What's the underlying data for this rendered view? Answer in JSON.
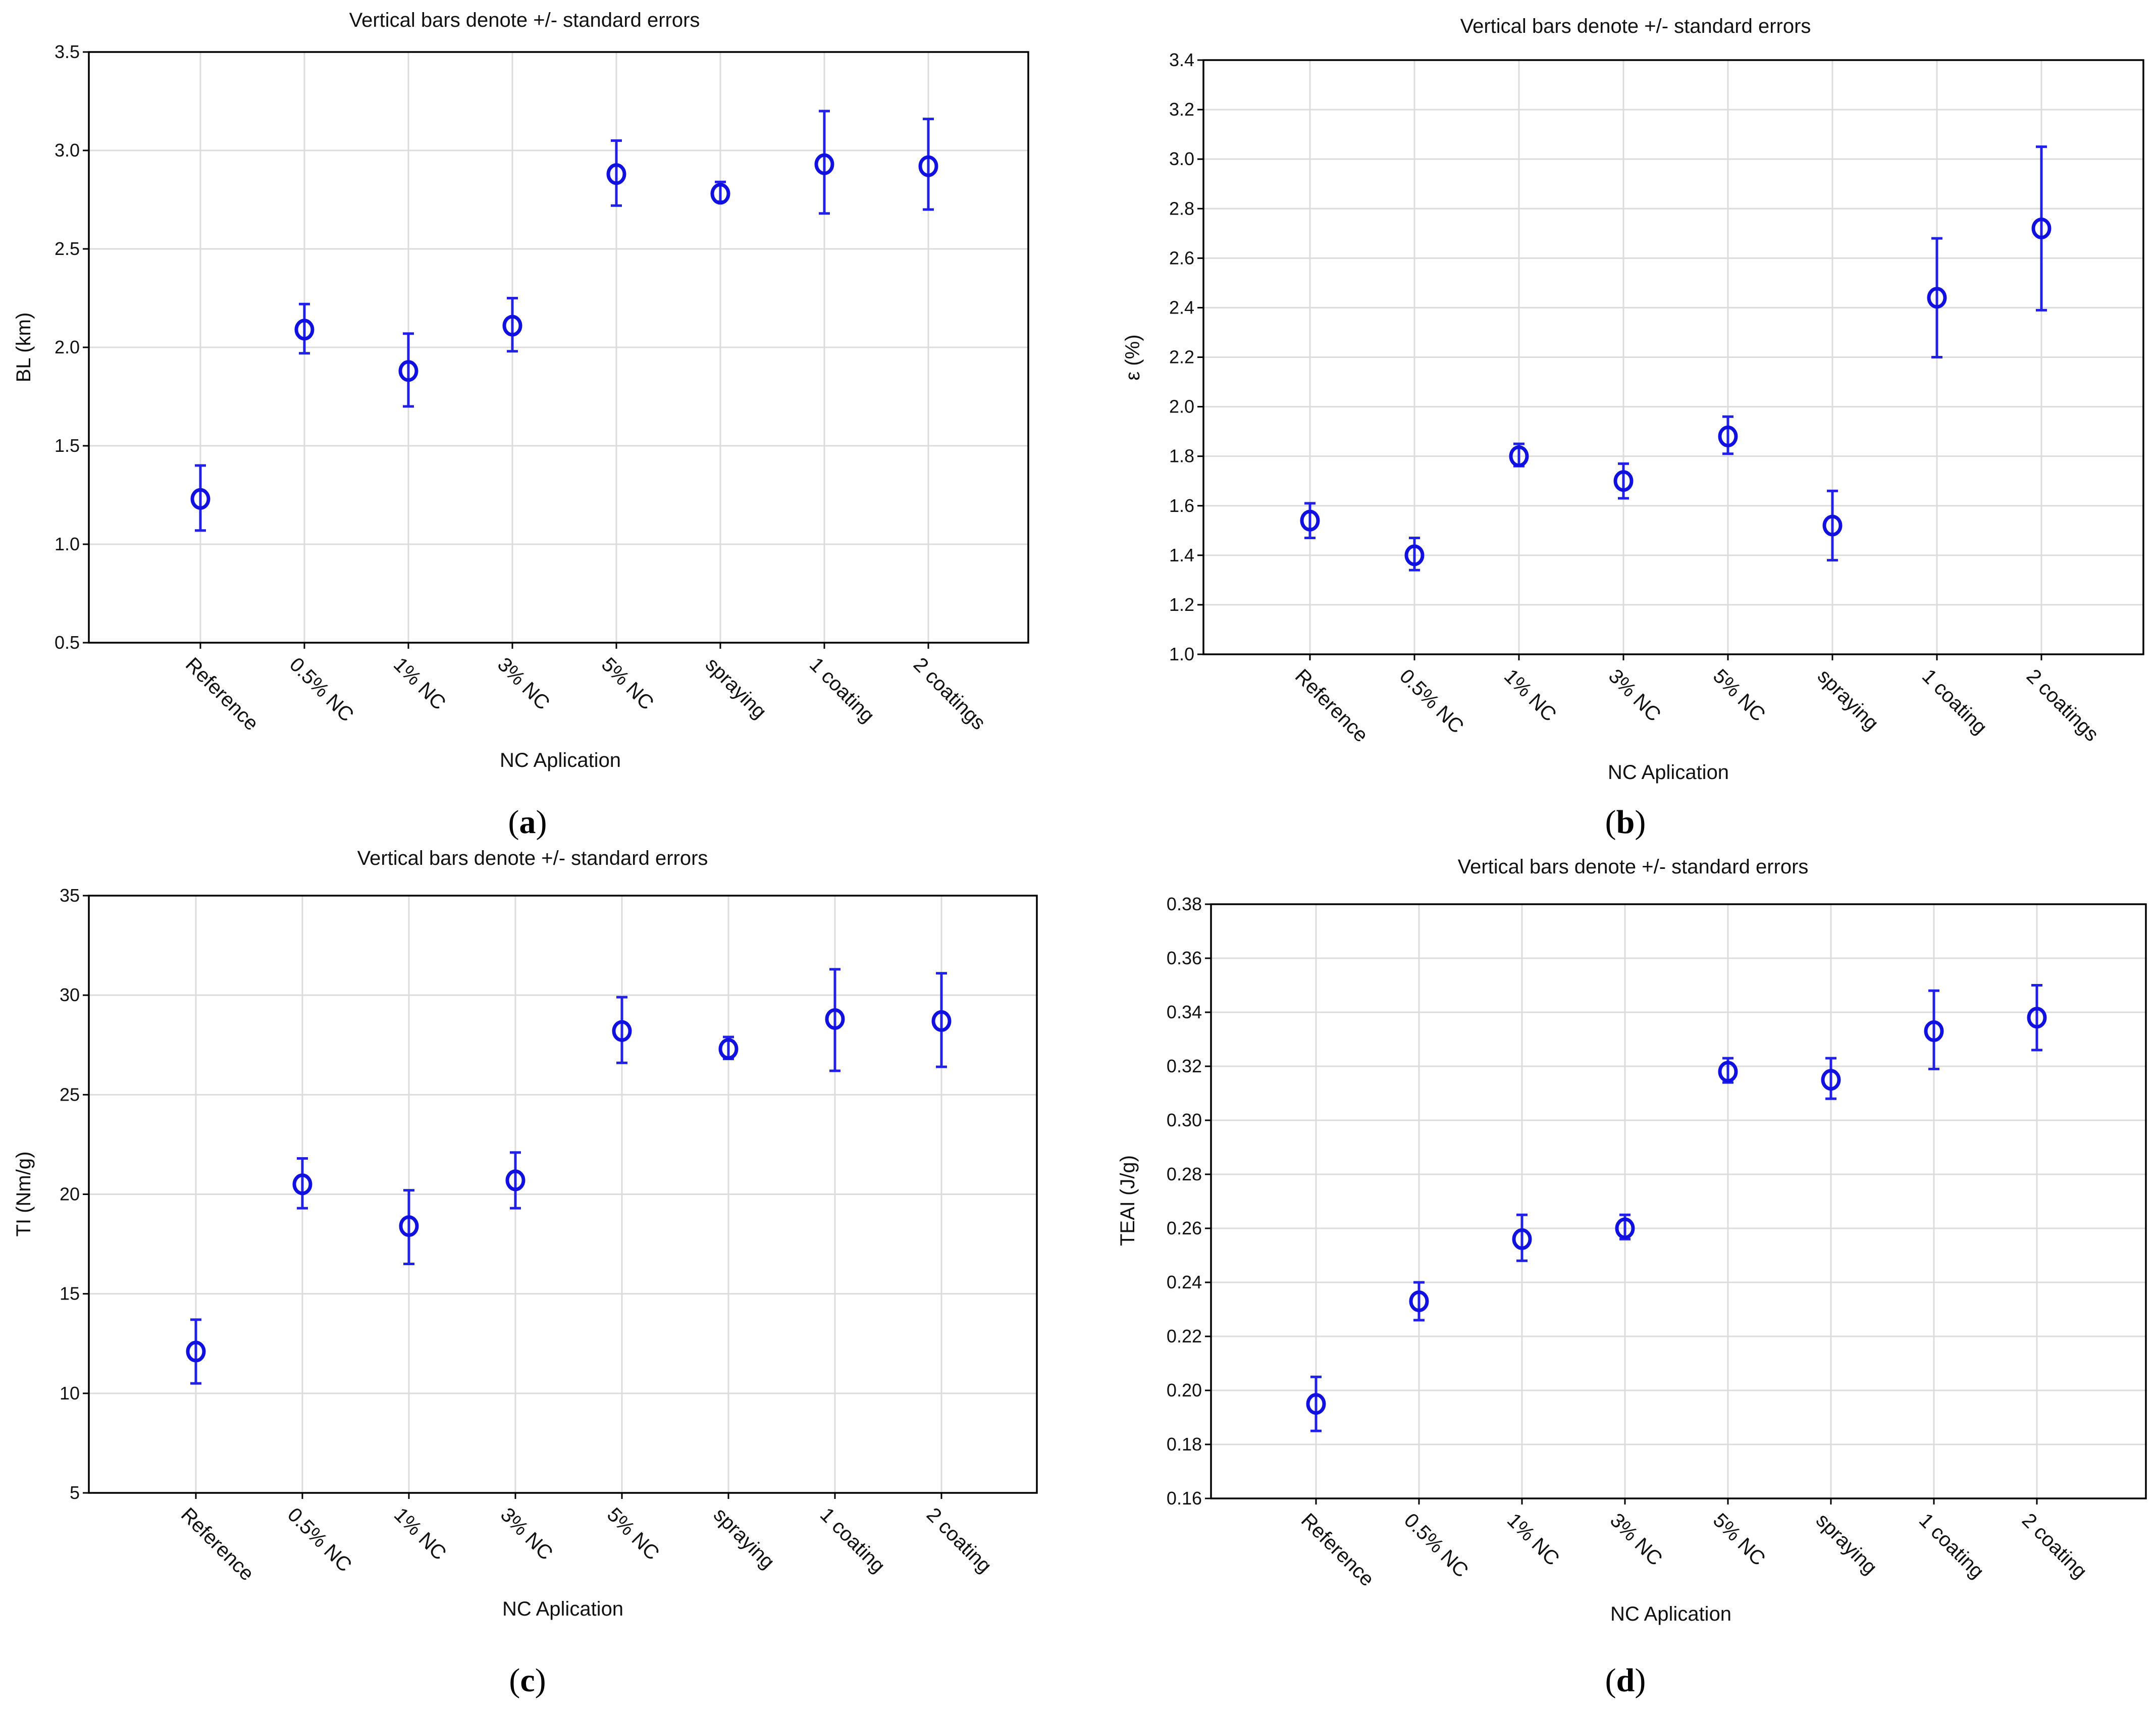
{
  "chart_data": [
    {
      "type": "scatter",
      "panel_label": "a",
      "title": "Vertical bars denote +/- standard errors",
      "xlabel": "NC Aplication",
      "ylabel": "BL (km)",
      "categories": [
        "Reference",
        "0.5% NC",
        "1% NC",
        "3% NC",
        "5% NC",
        "spraying",
        "1 coating",
        "2 coatings"
      ],
      "values": [
        1.23,
        2.09,
        1.88,
        2.11,
        2.88,
        2.78,
        2.93,
        2.92
      ],
      "error_low": [
        1.07,
        1.97,
        1.7,
        1.98,
        2.72,
        2.74,
        2.68,
        2.7
      ],
      "error_high": [
        1.4,
        2.22,
        2.07,
        2.25,
        3.05,
        2.84,
        3.2,
        3.16
      ],
      "ylim": [
        0.5,
        3.5
      ],
      "yticks": [
        0.5,
        1.0,
        1.5,
        2.0,
        2.5,
        3.0,
        3.5
      ],
      "ytick_labels": [
        "0.5",
        "1.0",
        "1.5",
        "2.0",
        "2.5",
        "3.0",
        "3.5"
      ]
    },
    {
      "type": "scatter",
      "panel_label": "b",
      "title": "Vertical bars denote +/- standard errors",
      "xlabel": "NC Aplication",
      "ylabel": "ε (%)",
      "categories": [
        "Reference",
        "0.5% NC",
        "1% NC",
        "3% NC",
        "5% NC",
        "spraying",
        "1 coating",
        "2 coatings"
      ],
      "values": [
        1.54,
        1.4,
        1.8,
        1.7,
        1.88,
        1.52,
        2.44,
        2.72
      ],
      "error_low": [
        1.47,
        1.34,
        1.76,
        1.63,
        1.81,
        1.38,
        2.2,
        2.39
      ],
      "error_high": [
        1.61,
        1.47,
        1.85,
        1.77,
        1.96,
        1.66,
        2.68,
        3.05
      ],
      "ylim": [
        1.0,
        3.4
      ],
      "yticks": [
        1.0,
        1.2,
        1.4,
        1.6,
        1.8,
        2.0,
        2.2,
        2.4,
        2.6,
        2.8,
        3.0,
        3.2,
        3.4
      ],
      "ytick_labels": [
        "1.0",
        "1.2",
        "1.4",
        "1.6",
        "1.8",
        "2.0",
        "2.2",
        "2.4",
        "2.6",
        "2.8",
        "3.0",
        "3.2",
        "3.4"
      ]
    },
    {
      "type": "scatter",
      "panel_label": "c",
      "title": "Vertical bars denote +/- standard errors",
      "xlabel": "NC Aplication",
      "ylabel": "TI (Nm/g)",
      "categories": [
        "Reference",
        "0.5% NC",
        "1% NC",
        "3% NC",
        "5% NC",
        "spraying",
        "1 coating",
        "2 coating"
      ],
      "values": [
        12.1,
        20.5,
        18.4,
        20.7,
        28.2,
        27.3,
        28.8,
        28.7
      ],
      "error_low": [
        10.5,
        19.3,
        16.5,
        19.3,
        26.6,
        26.8,
        26.2,
        26.4
      ],
      "error_high": [
        13.7,
        21.8,
        20.2,
        22.1,
        29.9,
        27.9,
        31.3,
        31.1
      ],
      "ylim": [
        5,
        35
      ],
      "yticks": [
        5,
        10,
        15,
        20,
        25,
        30,
        35
      ],
      "ytick_labels": [
        "5",
        "10",
        "15",
        "20",
        "25",
        "30",
        "35"
      ]
    },
    {
      "type": "scatter",
      "panel_label": "d",
      "title": "Vertical bars denote +/- standard errors",
      "xlabel": "NC Aplication",
      "ylabel": "TEAI (J/g)",
      "categories": [
        "Reference",
        "0.5% NC",
        "1% NC",
        "3% NC",
        "5% NC",
        "spraying",
        "1 coating",
        "2 coating"
      ],
      "values": [
        0.195,
        0.233,
        0.256,
        0.26,
        0.318,
        0.315,
        0.333,
        0.338
      ],
      "error_low": [
        0.185,
        0.226,
        0.248,
        0.256,
        0.314,
        0.308,
        0.319,
        0.326
      ],
      "error_high": [
        0.205,
        0.24,
        0.265,
        0.265,
        0.323,
        0.323,
        0.348,
        0.35
      ],
      "ylim": [
        0.16,
        0.38
      ],
      "yticks": [
        0.16,
        0.18,
        0.2,
        0.22,
        0.24,
        0.26,
        0.28,
        0.3,
        0.32,
        0.34,
        0.36,
        0.38
      ],
      "ytick_labels": [
        "0.16",
        "0.18",
        "0.20",
        "0.22",
        "0.24",
        "0.26",
        "0.28",
        "0.30",
        "0.32",
        "0.34",
        "0.36",
        "0.38"
      ]
    }
  ]
}
